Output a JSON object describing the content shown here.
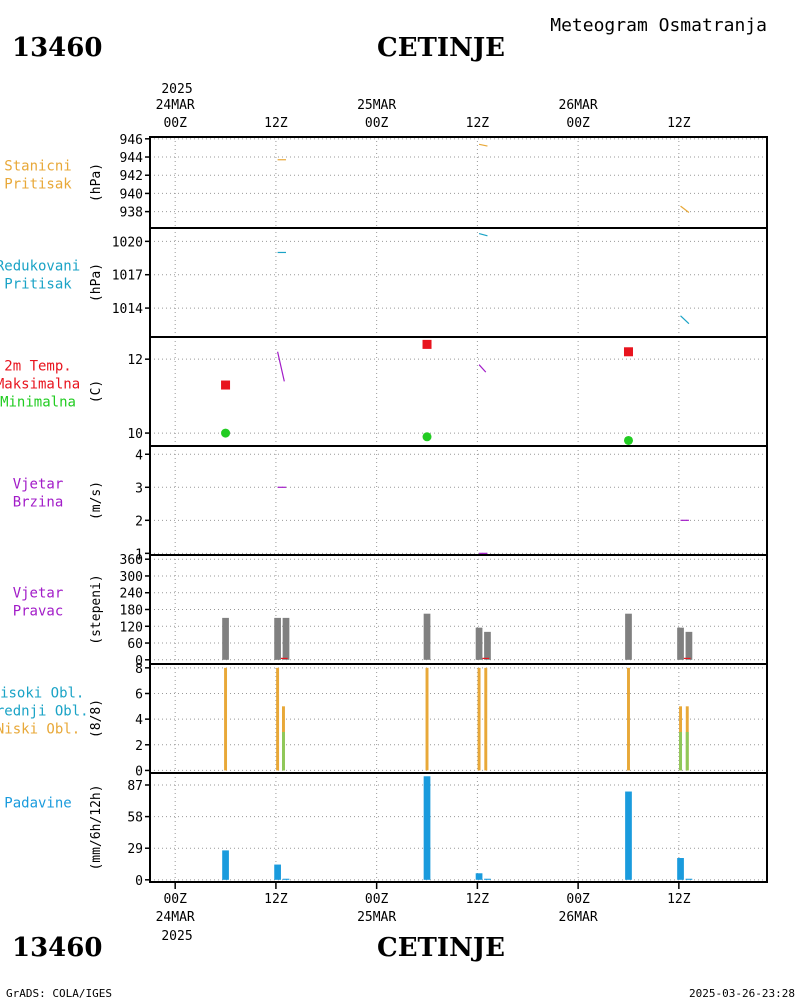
{
  "header": {
    "station_id": "13460",
    "station_name": "CETINJE",
    "title": "Meteogram Osmatranja"
  },
  "footer": {
    "credit": "GrADS: COLA/IGES",
    "timestamp": "2025-03-26-23:28"
  },
  "time_axis": {
    "top_year": "2025",
    "bottom_year": "2025",
    "ticks": [
      {
        "hour": 0,
        "hour_label": "00Z",
        "date_label": "24MAR"
      },
      {
        "hour": 12,
        "hour_label": "12Z",
        "date_label": ""
      },
      {
        "hour": 24,
        "hour_label": "00Z",
        "date_label": "25MAR"
      },
      {
        "hour": 36,
        "hour_label": "12Z",
        "date_label": ""
      },
      {
        "hour": 48,
        "hour_label": "00Z",
        "date_label": "26MAR"
      },
      {
        "hour": 60,
        "hour_label": "12Z",
        "date_label": ""
      }
    ],
    "range_hours": [
      -3,
      70.5
    ]
  },
  "colors": {
    "orange": "#E8A838",
    "cyan": "#1AA3C6",
    "red": "#E8141E",
    "green": "#22CC22",
    "purple": "#A21CC8",
    "gray": "#808080",
    "blue": "#1A9BDD",
    "lightgreen": "#8FC85A"
  },
  "chart_data": [
    {
      "id": "pressure_station",
      "type": "line",
      "labels": [
        "Stanicni",
        "Pritisak"
      ],
      "label_colors": [
        "orange",
        "orange"
      ],
      "ylabel": "(hPa)",
      "ylim": [
        936.2,
        946.2
      ],
      "yticks": [
        938,
        940,
        942,
        944,
        946
      ],
      "series": [
        {
          "color": "orange",
          "segments": [
            [
              [
                12.2,
                943.7
              ],
              [
                13.2,
                943.7
              ]
            ],
            [
              [
                36.2,
                945.4
              ],
              [
                37.2,
                945.2
              ]
            ],
            [
              [
                60.2,
                938.6
              ],
              [
                61.2,
                937.9
              ]
            ]
          ]
        }
      ]
    },
    {
      "id": "pressure_reduced",
      "type": "line",
      "labels": [
        "Redukovani",
        "Pritisak"
      ],
      "label_colors": [
        "cyan",
        "cyan"
      ],
      "ylabel": "(hPa)",
      "ylim": [
        1011.4,
        1021.2
      ],
      "yticks": [
        1014,
        1017,
        1020
      ],
      "series": [
        {
          "color": "cyan",
          "segments": [
            [
              [
                12.2,
                1019.0
              ],
              [
                13.2,
                1019.0
              ]
            ],
            [
              [
                36.2,
                1020.7
              ],
              [
                37.2,
                1020.5
              ]
            ],
            [
              [
                60.2,
                1013.3
              ],
              [
                61.2,
                1012.6
              ]
            ]
          ]
        }
      ]
    },
    {
      "id": "temperature",
      "type": "scatter",
      "labels": [
        "2m Temp.",
        "Maksimalna",
        "Minimalna"
      ],
      "label_colors": [
        "red",
        "red",
        "green"
      ],
      "ylabel": "(C)",
      "ylim": [
        9.65,
        12.6
      ],
      "yticks": [
        10,
        12
      ],
      "max": {
        "x": [
          6,
          30,
          54
        ],
        "y": [
          11.3,
          12.4,
          12.2
        ],
        "color": "red"
      },
      "min": {
        "x": [
          6,
          30,
          54
        ],
        "y": [
          10.0,
          9.9,
          9.8
        ],
        "color": "green"
      },
      "series": [
        {
          "color": "purple",
          "segments": [
            [
              [
                12.2,
                12.2
              ],
              [
                13.0,
                11.4
              ]
            ],
            [
              [
                36.2,
                11.85
              ],
              [
                37.0,
                11.65
              ]
            ]
          ]
        }
      ]
    },
    {
      "id": "wind_speed",
      "type": "line",
      "labels": [
        "Vjetar",
        "Brzina"
      ],
      "label_colors": [
        "purple",
        "purple"
      ],
      "ylabel": "(m/s)",
      "ylim": [
        0.95,
        4.25
      ],
      "yticks": [
        1,
        2,
        3,
        4
      ],
      "series": [
        {
          "color": "purple",
          "segments": [
            [
              [
                12.2,
                3.0
              ],
              [
                13.2,
                3.0
              ]
            ],
            [
              [
                36.2,
                1.0
              ],
              [
                37.2,
                1.0
              ]
            ],
            [
              [
                60.2,
                2.0
              ],
              [
                61.2,
                2.0
              ]
            ]
          ]
        }
      ]
    },
    {
      "id": "wind_direction",
      "type": "bar",
      "labels": [
        "Vjetar",
        "Pravac"
      ],
      "label_colors": [
        "purple",
        "purple"
      ],
      "ylabel": "(stepeni)",
      "ylim": [
        -15,
        375
      ],
      "yticks": [
        0,
        60,
        120,
        180,
        240,
        300,
        360
      ],
      "bar_width_hours": 0.8,
      "bars": [
        {
          "x": 6,
          "value": 150,
          "color": "gray"
        },
        {
          "x": 12.2,
          "value": 150,
          "color": "gray"
        },
        {
          "x": 13.2,
          "value": 150,
          "color": "gray"
        },
        {
          "x": 30,
          "value": 165,
          "color": "gray"
        },
        {
          "x": 36.2,
          "value": 115,
          "color": "gray"
        },
        {
          "x": 37.2,
          "value": 100,
          "color": "gray"
        },
        {
          "x": 54,
          "value": 165,
          "color": "gray"
        },
        {
          "x": 60.2,
          "value": 115,
          "color": "gray"
        },
        {
          "x": 61.2,
          "value": 100,
          "color": "gray"
        }
      ],
      "series": [
        {
          "color": "red",
          "segments": [
            [
              [
                12.6,
                5
              ],
              [
                13.4,
                5
              ]
            ],
            [
              [
                36.6,
                5
              ],
              [
                37.4,
                5
              ]
            ],
            [
              [
                60.6,
                5
              ],
              [
                61.4,
                5
              ]
            ]
          ]
        }
      ]
    },
    {
      "id": "clouds",
      "type": "bar",
      "labels": [
        "Visoki Obl.",
        "Srednji Obl.",
        "Niski Obl."
      ],
      "label_colors": [
        "cyan",
        "cyan",
        "orange"
      ],
      "ylabel": "(8/8)",
      "ylim": [
        -0.2,
        8.3
      ],
      "yticks": [
        0,
        2,
        4,
        6,
        8
      ],
      "bar_width_hours": 0.35,
      "bars": [
        {
          "x": 6,
          "value": 8,
          "color": "orange"
        },
        {
          "x": 12.2,
          "value": 8,
          "color": "orange"
        },
        {
          "x": 12.9,
          "value": 5,
          "color": "orange"
        },
        {
          "x": 12.9,
          "value": 3,
          "color": "lightgreen"
        },
        {
          "x": 30,
          "value": 8,
          "color": "orange"
        },
        {
          "x": 36.2,
          "value": 8,
          "color": "orange"
        },
        {
          "x": 37.0,
          "value": 8,
          "color": "orange"
        },
        {
          "x": 54,
          "value": 8,
          "color": "orange"
        },
        {
          "x": 60.2,
          "value": 5,
          "color": "orange"
        },
        {
          "x": 60.2,
          "value": 3,
          "color": "lightgreen"
        },
        {
          "x": 61.0,
          "value": 5,
          "color": "orange"
        },
        {
          "x": 61.0,
          "value": 3,
          "color": "lightgreen"
        }
      ],
      "series": []
    },
    {
      "id": "precipitation",
      "type": "bar",
      "labels": [
        "Padavine"
      ],
      "label_colors": [
        "blue"
      ],
      "ylabel": "(mm/6h/12h)",
      "ylim": [
        -2,
        98
      ],
      "yticks": [
        0,
        29,
        58,
        87
      ],
      "bar_width_hours": 0.8,
      "bars": [
        {
          "x": 6,
          "value": 27,
          "color": "blue"
        },
        {
          "x": 12.2,
          "value": 14,
          "color": "blue"
        },
        {
          "x": 13.2,
          "value": 1,
          "color": "blue"
        },
        {
          "x": 30,
          "value": 95,
          "color": "blue"
        },
        {
          "x": 36.2,
          "value": 6,
          "color": "blue"
        },
        {
          "x": 37.2,
          "value": 1,
          "color": "blue"
        },
        {
          "x": 54,
          "value": 81,
          "color": "blue"
        },
        {
          "x": 60.2,
          "value": 20,
          "color": "blue"
        },
        {
          "x": 61.2,
          "value": 1,
          "color": "blue"
        }
      ],
      "series": []
    }
  ]
}
